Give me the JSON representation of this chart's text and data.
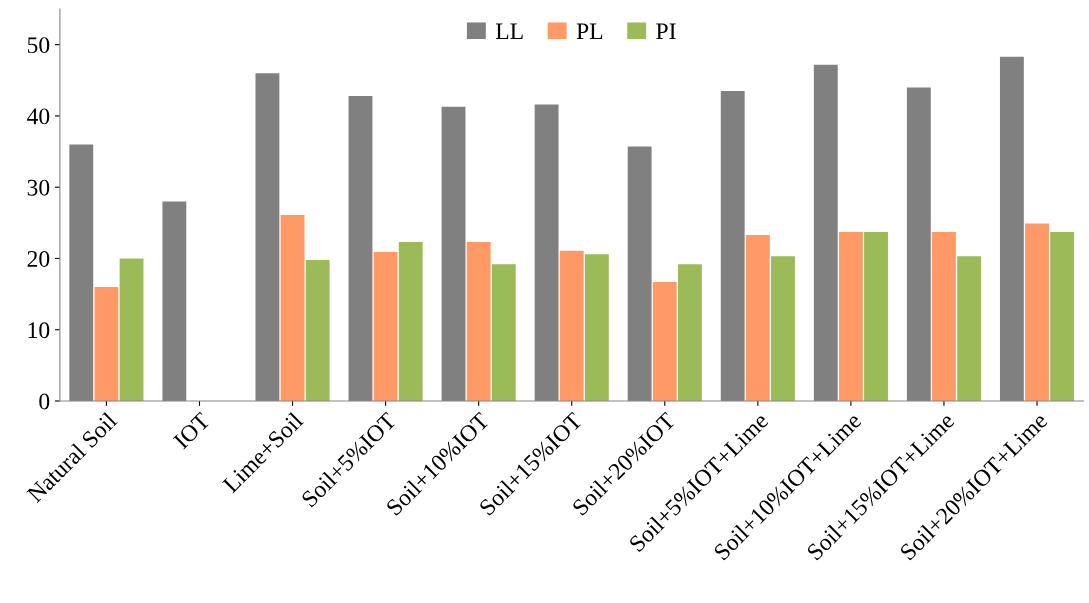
{
  "chart_data": {
    "type": "bar",
    "categories": [
      "Natural Soil",
      "IOT",
      "Lime+Soil",
      "Soil+5%IOT",
      "Soil+10%IOT",
      "Soil+15%IOT",
      "Soil+20%IOT",
      "Soil+5%IOT+Lime",
      "Soil+10%IOT+Lime",
      "Soil+15%IOT+Lime",
      "Soil+20%IOT+Lime"
    ],
    "series": [
      {
        "name": "LL",
        "color": "#808080",
        "values": [
          36,
          28,
          46,
          42.8,
          41.3,
          41.6,
          35.7,
          43.5,
          47.2,
          44,
          48.3
        ]
      },
      {
        "name": "PL",
        "color": "#ff9966",
        "values": [
          16,
          0,
          26.1,
          20.9,
          22.3,
          21.1,
          16.7,
          23.3,
          23.7,
          23.7,
          24.9
        ]
      },
      {
        "name": "PI",
        "color": "#9bbb59",
        "values": [
          20,
          0,
          19.8,
          22.3,
          19.2,
          20.6,
          19.2,
          20.3,
          23.7,
          20.3,
          23.7
        ]
      }
    ],
    "ylim": [
      0,
      55
    ],
    "yticks": [
      0,
      10,
      20,
      30,
      40,
      50
    ],
    "grid": false,
    "legend": "top"
  }
}
